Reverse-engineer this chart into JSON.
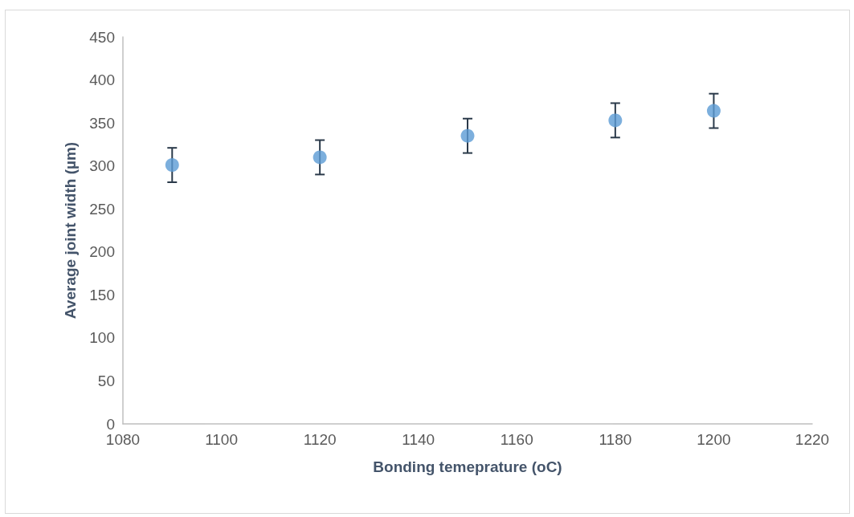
{
  "chart_data": {
    "type": "scatter",
    "xlabel": "Bonding temeprature (oC)",
    "ylabel": "Average joint width (µm)",
    "x": [
      1090,
      1120,
      1150,
      1180,
      1200
    ],
    "values": [
      301,
      310,
      335,
      353,
      364
    ],
    "errors": [
      20,
      20,
      20,
      20,
      20
    ],
    "color": "#5b9bd5",
    "marker": "circle",
    "grid": false,
    "xlim": [
      1080,
      1220
    ],
    "xticks": [
      1080,
      1100,
      1120,
      1140,
      1160,
      1180,
      1200,
      1220
    ],
    "ylim": [
      0,
      450
    ],
    "yticks": [
      0,
      50,
      100,
      150,
      200,
      250,
      300,
      350,
      400,
      450
    ]
  }
}
